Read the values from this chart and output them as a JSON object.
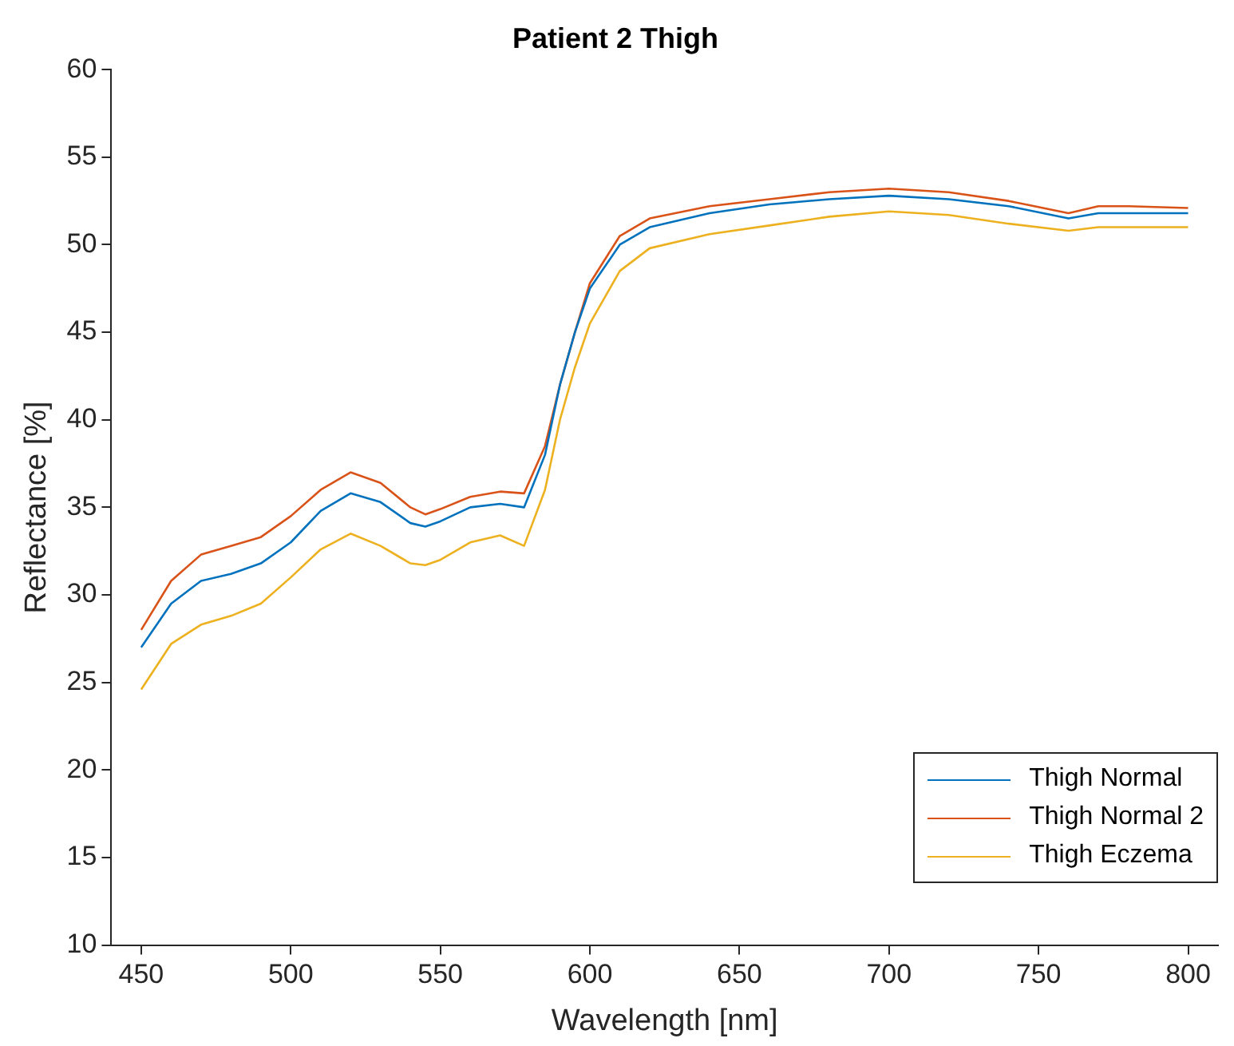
{
  "chart_data": {
    "type": "line",
    "title": "Patient 2 Thigh",
    "xlabel": "Wavelength [nm]",
    "ylabel": "Reflectance [%]",
    "x": [
      450,
      460,
      470,
      480,
      490,
      500,
      510,
      520,
      530,
      540,
      545,
      550,
      560,
      570,
      578,
      585,
      590,
      595,
      600,
      610,
      620,
      640,
      660,
      680,
      700,
      720,
      740,
      760,
      770,
      780,
      800
    ],
    "series": [
      {
        "name": "Thigh Normal",
        "color": "#0072bd",
        "values": [
          27,
          29.5,
          30.8,
          31.2,
          31.8,
          33,
          34.8,
          35.8,
          35.3,
          34.1,
          33.9,
          34.2,
          35,
          35.2,
          35,
          38,
          42,
          45,
          47.5,
          50,
          51,
          51.8,
          52.3,
          52.6,
          52.8,
          52.6,
          52.2,
          51.5,
          51.8,
          51.8,
          51.8
        ]
      },
      {
        "name": "Thigh Normal 2",
        "color": "#d95319",
        "values": [
          28,
          30.8,
          32.3,
          32.8,
          33.3,
          34.5,
          36,
          37,
          36.4,
          35,
          34.6,
          34.9,
          35.6,
          35.9,
          35.8,
          38.5,
          42,
          45,
          47.8,
          50.5,
          51.5,
          52.2,
          52.6,
          53,
          53.2,
          53,
          52.5,
          51.8,
          52.2,
          52.2,
          52.1
        ]
      },
      {
        "name": "Thigh Eczema",
        "color": "#edb120",
        "values": [
          24.6,
          27.2,
          28.3,
          28.8,
          29.5,
          31,
          32.6,
          33.5,
          32.8,
          31.8,
          31.7,
          32,
          33,
          33.4,
          32.8,
          36,
          40,
          43,
          45.5,
          48.5,
          49.8,
          50.6,
          51.1,
          51.6,
          51.9,
          51.7,
          51.2,
          50.8,
          51,
          51,
          51
        ]
      }
    ],
    "xlim": [
      440,
      810
    ],
    "xticks": [
      450,
      500,
      550,
      600,
      650,
      700,
      750,
      800
    ],
    "ylim": [
      10,
      60
    ],
    "yticks": [
      10,
      15,
      20,
      25,
      30,
      35,
      40,
      45,
      50,
      55,
      60
    ],
    "grid": false,
    "legend": "bottom right",
    "marker": "none",
    "line_style": "solid"
  }
}
